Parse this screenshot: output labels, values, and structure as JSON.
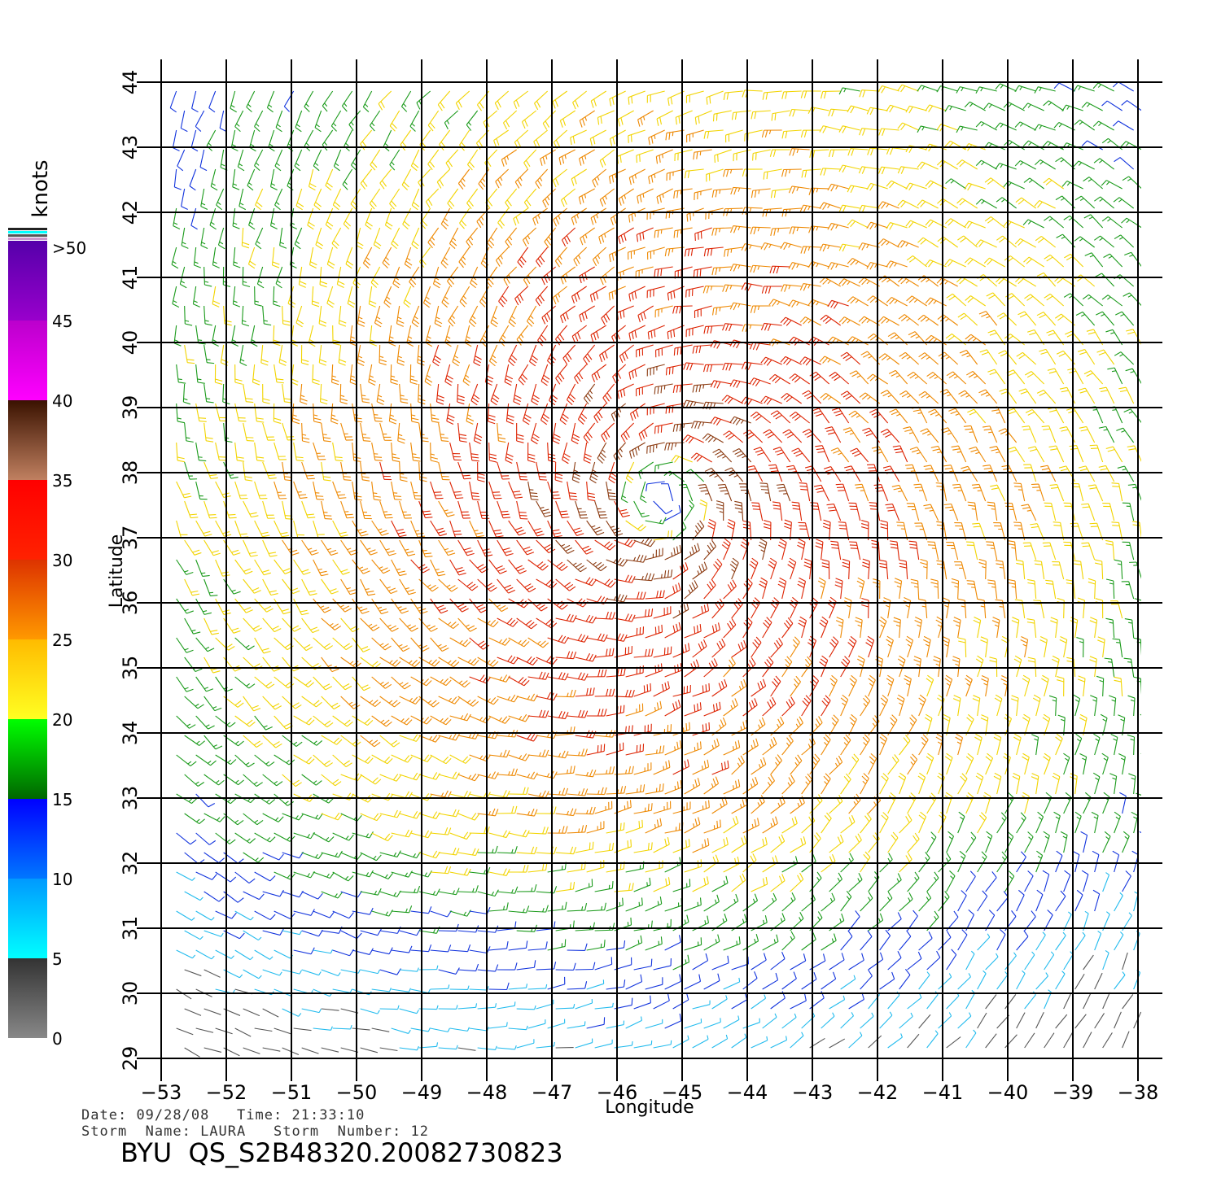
{
  "map": {
    "lon_range": [
      -53,
      -38
    ],
    "lat_range": [
      29,
      44
    ],
    "lon_ticks": [
      -53,
      -52,
      -51,
      -50,
      -49,
      -48,
      -47,
      -46,
      -45,
      -44,
      -43,
      -42,
      -41,
      -40,
      -39,
      -38
    ],
    "lat_ticks": [
      29,
      30,
      31,
      32,
      33,
      34,
      35,
      36,
      37,
      38,
      39,
      40,
      41,
      42,
      43,
      44
    ],
    "x_label": "Longitude",
    "y_label": "Latitude",
    "storm_center": {
      "lon": -45.3,
      "lat": 37.6
    },
    "grid": true,
    "field": "wind barbs, cyclonic circulation"
  },
  "colorbar": {
    "title": "knots",
    "labels": [
      "0",
      "5",
      "10",
      "15",
      "20",
      "25",
      "30",
      "35",
      "40",
      "45",
      ">50"
    ],
    "bands": [
      {
        "from": 0,
        "to": 5,
        "colors": [
          "#888888",
          "#333333"
        ]
      },
      {
        "from": 5,
        "to": 10,
        "colors": [
          "#00ffff",
          "#0099ff"
        ]
      },
      {
        "from": 10,
        "to": 15,
        "colors": [
          "#0077ff",
          "#0000ff"
        ]
      },
      {
        "from": 15,
        "to": 20,
        "colors": [
          "#006600",
          "#00ff00"
        ]
      },
      {
        "from": 20,
        "to": 25,
        "colors": [
          "#ffff22",
          "#ffbb00"
        ]
      },
      {
        "from": 25,
        "to": 30,
        "colors": [
          "#ff9900",
          "#dd3300"
        ]
      },
      {
        "from": 30,
        "to": 35,
        "colors": [
          "#ff2200",
          "#ff0000"
        ]
      },
      {
        "from": 35,
        "to": 40,
        "colors": [
          "#c08060",
          "#3a1200"
        ]
      },
      {
        "from": 40,
        "to": 45,
        "colors": [
          "#ff00ff",
          "#bb00cc"
        ]
      },
      {
        "from": 45,
        "to": 50,
        "colors": [
          "#9900cc",
          "#5500aa"
        ]
      }
    ]
  },
  "footer": {
    "date_label": "Date:",
    "date": "09/28/08",
    "time_label": "Time:",
    "time": "21:33:10",
    "storm_name_label": "Storm  Name:",
    "storm_name": "LAURA",
    "storm_number_label": "Storm  Number:",
    "storm_number": "12",
    "product": "BYU  QS_S2B48320.20082730823"
  }
}
